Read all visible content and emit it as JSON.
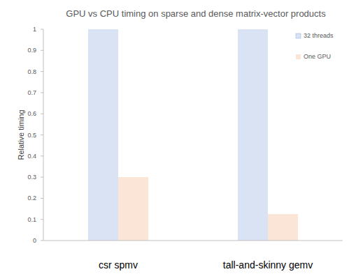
{
  "chart_data": {
    "type": "bar",
    "title": "GPU vs CPU timing on sparse and dense matrix-vector products",
    "y_label": "Relative timing",
    "categories": [
      "csr spmv",
      "tall-and-skinny gemv"
    ],
    "series": [
      {
        "name": "32 threads",
        "color": "#dae3f3",
        "values": [
          1,
          1
        ]
      },
      {
        "name": "One GPU",
        "color": "#fbe5d6",
        "values": [
          0.3,
          0.125
        ]
      }
    ],
    "ylim": [
      0,
      1
    ],
    "yticks": [
      0,
      0.1,
      0.2,
      0.3,
      0.4,
      0.5,
      0.6,
      0.7,
      0.8,
      0.9,
      1
    ],
    "grid": false,
    "legend": "upper right"
  }
}
